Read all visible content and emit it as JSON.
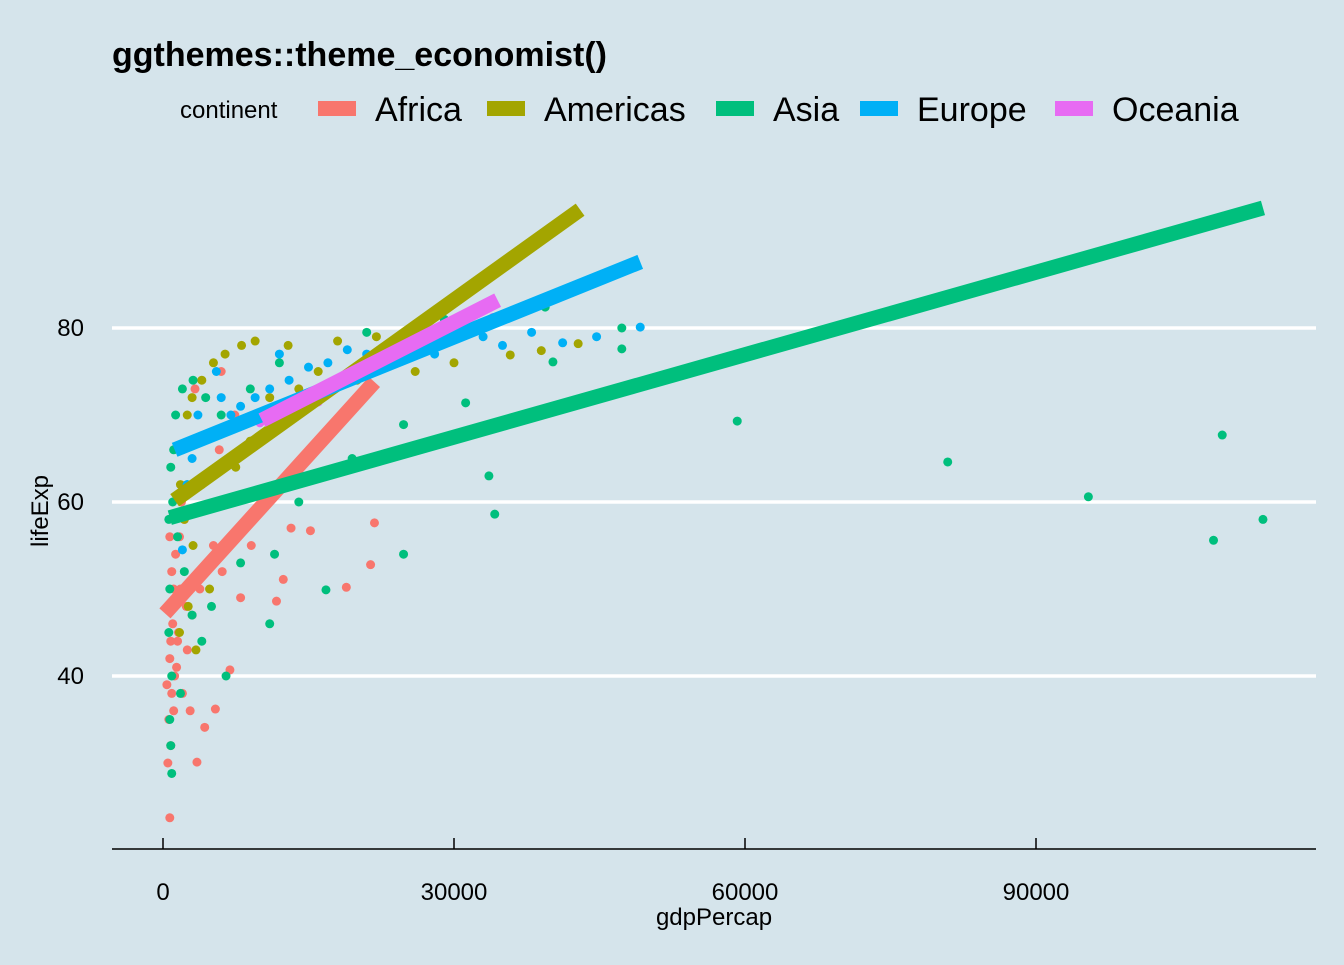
{
  "chart_data": {
    "type": "scatter",
    "title": "ggthemes::theme_economist()",
    "xlabel": "gdpPercap",
    "ylabel": "lifeExp",
    "xlim": [
      -5000,
      118000
    ],
    "ylim": [
      20,
      98
    ],
    "xticks": [
      0,
      30000,
      60000,
      90000
    ],
    "yticks": [
      40,
      60,
      80
    ],
    "grid": "horizontal",
    "legend_position": "top",
    "legend_title": "continent",
    "background": "#d5e4eb",
    "series": [
      {
        "name": "Africa",
        "color": "#f8766d",
        "line": [
          [
            200,
            47.2
          ],
          [
            21800,
            73.8
          ]
        ],
        "points": [
          [
            700,
            23.7
          ],
          [
            21800,
            57.6
          ],
          [
            18900,
            50.2
          ],
          [
            21400,
            52.8
          ],
          [
            15200,
            56.7
          ],
          [
            12400,
            51.1
          ],
          [
            11700,
            48.6
          ],
          [
            3500,
            30.1
          ],
          [
            4300,
            34.1
          ],
          [
            5400,
            36.2
          ],
          [
            6900,
            40.7
          ],
          [
            500,
            30
          ],
          [
            800,
            32
          ],
          [
            600,
            35
          ],
          [
            900,
            38
          ],
          [
            1200,
            40
          ],
          [
            700,
            42
          ],
          [
            1500,
            44
          ],
          [
            1000,
            46
          ],
          [
            600,
            48
          ],
          [
            1800,
            50
          ],
          [
            900,
            52
          ],
          [
            1300,
            54
          ],
          [
            700,
            56
          ],
          [
            2200,
            58
          ],
          [
            1600,
            45
          ],
          [
            2500,
            43
          ],
          [
            3000,
            47
          ],
          [
            3800,
            50
          ],
          [
            4600,
            53
          ],
          [
            5200,
            55
          ],
          [
            6100,
            52
          ],
          [
            8000,
            49
          ],
          [
            9100,
            55
          ],
          [
            13200,
            57
          ],
          [
            4000,
            62
          ],
          [
            5800,
            66
          ],
          [
            7400,
            70
          ],
          [
            3300,
            73
          ],
          [
            6000,
            75
          ],
          [
            400,
            39
          ],
          [
            1100,
            36
          ],
          [
            1400,
            41
          ],
          [
            2000,
            38
          ],
          [
            2800,
            36
          ],
          [
            1700,
            56
          ],
          [
            1900,
            60
          ],
          [
            2400,
            48
          ],
          [
            1100,
            50
          ],
          [
            800,
            44
          ]
        ]
      },
      {
        "name": "Americas",
        "color": "#a3a500",
        "line": [
          [
            1200,
            60.2
          ],
          [
            43000,
            93.6
          ]
        ],
        "points": [
          [
            42800,
            78.2
          ],
          [
            39000,
            77.4
          ],
          [
            35800,
            76.9
          ],
          [
            30000,
            76
          ],
          [
            26000,
            75
          ],
          [
            22000,
            79
          ],
          [
            18000,
            78.5
          ],
          [
            12900,
            78
          ],
          [
            9500,
            78.5
          ],
          [
            8100,
            78
          ],
          [
            6400,
            77
          ],
          [
            5200,
            76
          ],
          [
            4000,
            74
          ],
          [
            3000,
            72
          ],
          [
            2500,
            70
          ],
          [
            2000,
            66
          ],
          [
            1800,
            62
          ],
          [
            2200,
            58
          ],
          [
            3100,
            55
          ],
          [
            3800,
            52
          ],
          [
            2600,
            48
          ],
          [
            1700,
            45
          ],
          [
            3400,
            43
          ],
          [
            4800,
            50
          ],
          [
            6000,
            60
          ],
          [
            7500,
            64
          ],
          [
            9000,
            67
          ],
          [
            11000,
            72
          ],
          [
            14000,
            73
          ],
          [
            16000,
            75
          ],
          [
            20000,
            74
          ],
          [
            24000,
            77
          ],
          [
            28000,
            78
          ],
          [
            33000,
            80
          ]
        ]
      },
      {
        "name": "Asia",
        "color": "#00bf7d",
        "line": [
          [
            700,
            58.2
          ],
          [
            113400,
            93.8
          ]
        ],
        "points": [
          [
            59200,
            69.3
          ],
          [
            80900,
            64.6
          ],
          [
            95400,
            60.6
          ],
          [
            109200,
            67.7
          ],
          [
            108300,
            55.6
          ],
          [
            113400,
            58.0
          ],
          [
            47300,
            80
          ],
          [
            47300,
            77.6
          ],
          [
            33600,
            63
          ],
          [
            34200,
            58.6
          ],
          [
            24800,
            68.9
          ],
          [
            24800,
            54
          ],
          [
            31200,
            71.4
          ],
          [
            16800,
            49.9
          ],
          [
            39400,
            82.4
          ],
          [
            40200,
            76.1
          ],
          [
            21000,
            79.5
          ],
          [
            19500,
            65
          ],
          [
            17000,
            68
          ],
          [
            14000,
            60
          ],
          [
            11500,
            54
          ],
          [
            11000,
            46
          ],
          [
            8000,
            53
          ],
          [
            6500,
            40
          ],
          [
            5000,
            48
          ],
          [
            4000,
            44
          ],
          [
            3000,
            47
          ],
          [
            2200,
            52
          ],
          [
            1500,
            56
          ],
          [
            1000,
            60
          ],
          [
            800,
            64
          ],
          [
            700,
            50
          ],
          [
            600,
            45
          ],
          [
            900,
            40
          ],
          [
            700,
            35
          ],
          [
            800,
            32
          ],
          [
            900,
            28.8
          ],
          [
            1300,
            70
          ],
          [
            2000,
            73
          ],
          [
            3100,
            74
          ],
          [
            4400,
            72
          ],
          [
            6000,
            70
          ],
          [
            9000,
            73
          ],
          [
            12000,
            76
          ],
          [
            26000,
            80
          ],
          [
            29000,
            81
          ],
          [
            1100,
            66
          ],
          [
            2500,
            62
          ],
          [
            600,
            58
          ],
          [
            1800,
            38
          ]
        ]
      },
      {
        "name": "Europe",
        "color": "#00b0f6",
        "line": [
          [
            1200,
            66.0
          ],
          [
            49200,
            87.6
          ]
        ],
        "points": [
          [
            49200,
            80.1
          ],
          [
            44700,
            79
          ],
          [
            41200,
            78.3
          ],
          [
            38000,
            79.5
          ],
          [
            35000,
            78
          ],
          [
            33000,
            79
          ],
          [
            30000,
            80
          ],
          [
            28000,
            77
          ],
          [
            27000,
            81
          ],
          [
            25000,
            79
          ],
          [
            23000,
            78
          ],
          [
            21000,
            77
          ],
          [
            19000,
            77.5
          ],
          [
            17000,
            76
          ],
          [
            15000,
            75.5
          ],
          [
            13000,
            74
          ],
          [
            11000,
            73
          ],
          [
            9500,
            72
          ],
          [
            8000,
            71
          ],
          [
            7000,
            70
          ],
          [
            6000,
            72
          ],
          [
            5000,
            68
          ],
          [
            4000,
            67
          ],
          [
            3000,
            65
          ],
          [
            2500,
            62
          ],
          [
            2000,
            54.5
          ],
          [
            3600,
            70
          ],
          [
            5500,
            75
          ],
          [
            12000,
            77
          ],
          [
            16000,
            72
          ]
        ]
      },
      {
        "name": "Oceania",
        "color": "#e76bf3",
        "line": [
          [
            10200,
            69.4
          ],
          [
            34500,
            83.2
          ]
        ],
        "points": [
          [
            10000,
            69.1
          ],
          [
            12000,
            70.3
          ],
          [
            14000,
            71
          ],
          [
            16000,
            71.5
          ],
          [
            18500,
            74
          ],
          [
            21000,
            75.5
          ],
          [
            23500,
            77
          ],
          [
            26000,
            79
          ],
          [
            30000,
            80.5
          ],
          [
            34000,
            81.2
          ]
        ]
      }
    ]
  }
}
